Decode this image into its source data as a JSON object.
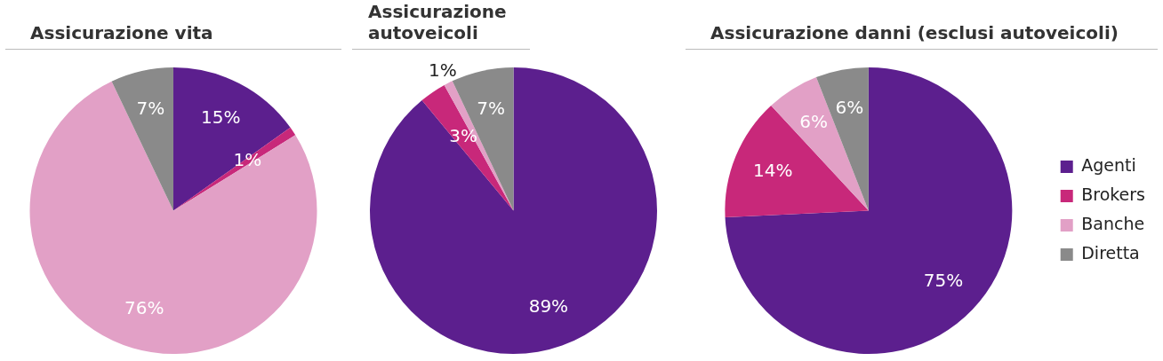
{
  "chart_data": [
    {
      "type": "pie",
      "title": "Assicurazione vita",
      "categories": [
        null,
        null,
        null,
        null
      ],
      "values": [
        15,
        1,
        76,
        7
      ],
      "value_labels": [
        "15%",
        "1%",
        "76%",
        "7%"
      ],
      "colors": [
        "#5c1f8e",
        "#c8287a",
        "#e2a0c6",
        "#8a8a8a"
      ],
      "legend": false
    },
    {
      "type": "pie",
      "title": "Assicurazione autoveicoli",
      "categories": [
        null,
        null,
        null,
        null
      ],
      "values": [
        89,
        3,
        1,
        7
      ],
      "value_labels": [
        "89%",
        "3%",
        "1%",
        "7%"
      ],
      "colors": [
        "#5c1f8e",
        "#c8287a",
        "#e2a0c6",
        "#8a8a8a"
      ],
      "legend": false
    },
    {
      "type": "pie",
      "title": "Assicurazione danni (esclusi autoveicoli)",
      "categories": [
        "Agenti",
        "Brokers",
        "Banche",
        "Diretta"
      ],
      "values": [
        75,
        14,
        6,
        6
      ],
      "value_labels": [
        "75%",
        "14%",
        "6%",
        "6%"
      ],
      "colors": [
        "#5c1f8e",
        "#c8287a",
        "#e2a0c6",
        "#8a8a8a"
      ],
      "legend": "right"
    }
  ]
}
